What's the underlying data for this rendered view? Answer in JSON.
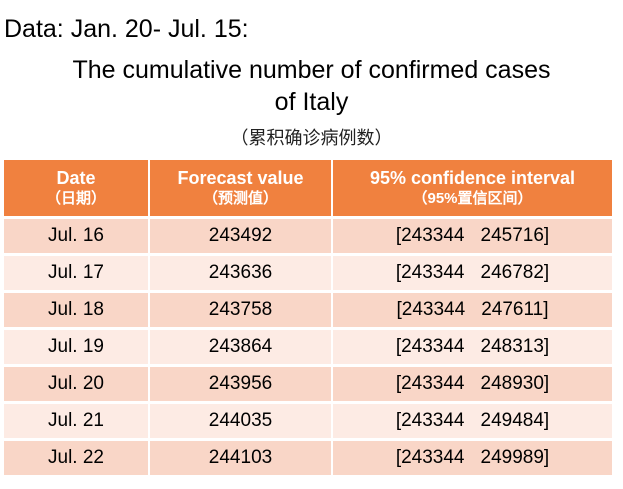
{
  "heading": "Data: Jan. 20- Jul. 15:",
  "title_line1": "The cumulative number of confirmed cases",
  "title_line2": "of  Italy",
  "subtitle": "（累积确诊病例数）",
  "colors": {
    "header_bg": "#f0813f",
    "row_odd": "#f9d6c7",
    "row_even": "#fdebe4"
  },
  "table": {
    "headers": [
      {
        "label": "Date",
        "sub": "（日期）"
      },
      {
        "label": "Forecast value",
        "sub": "（预测值）"
      },
      {
        "label": "95% confidence interval",
        "sub": "（95%置信区间）"
      }
    ],
    "rows": [
      {
        "date": "Jul. 16",
        "forecast": "243492",
        "ci_low": "[243344",
        "ci_high": "245716]"
      },
      {
        "date": "Jul. 17",
        "forecast": "243636",
        "ci_low": "[243344",
        "ci_high": "246782]"
      },
      {
        "date": "Jul. 18",
        "forecast": "243758",
        "ci_low": "[243344",
        "ci_high": "247611]"
      },
      {
        "date": "Jul. 19",
        "forecast": "243864",
        "ci_low": "[243344",
        "ci_high": "248313]"
      },
      {
        "date": "Jul. 20",
        "forecast": "243956",
        "ci_low": "[243344",
        "ci_high": "248930]"
      },
      {
        "date": "Jul. 21",
        "forecast": "244035",
        "ci_low": "[243344",
        "ci_high": "249484]"
      },
      {
        "date": "Jul. 22",
        "forecast": "244103",
        "ci_low": "[243344",
        "ci_high": "249989]"
      }
    ]
  }
}
